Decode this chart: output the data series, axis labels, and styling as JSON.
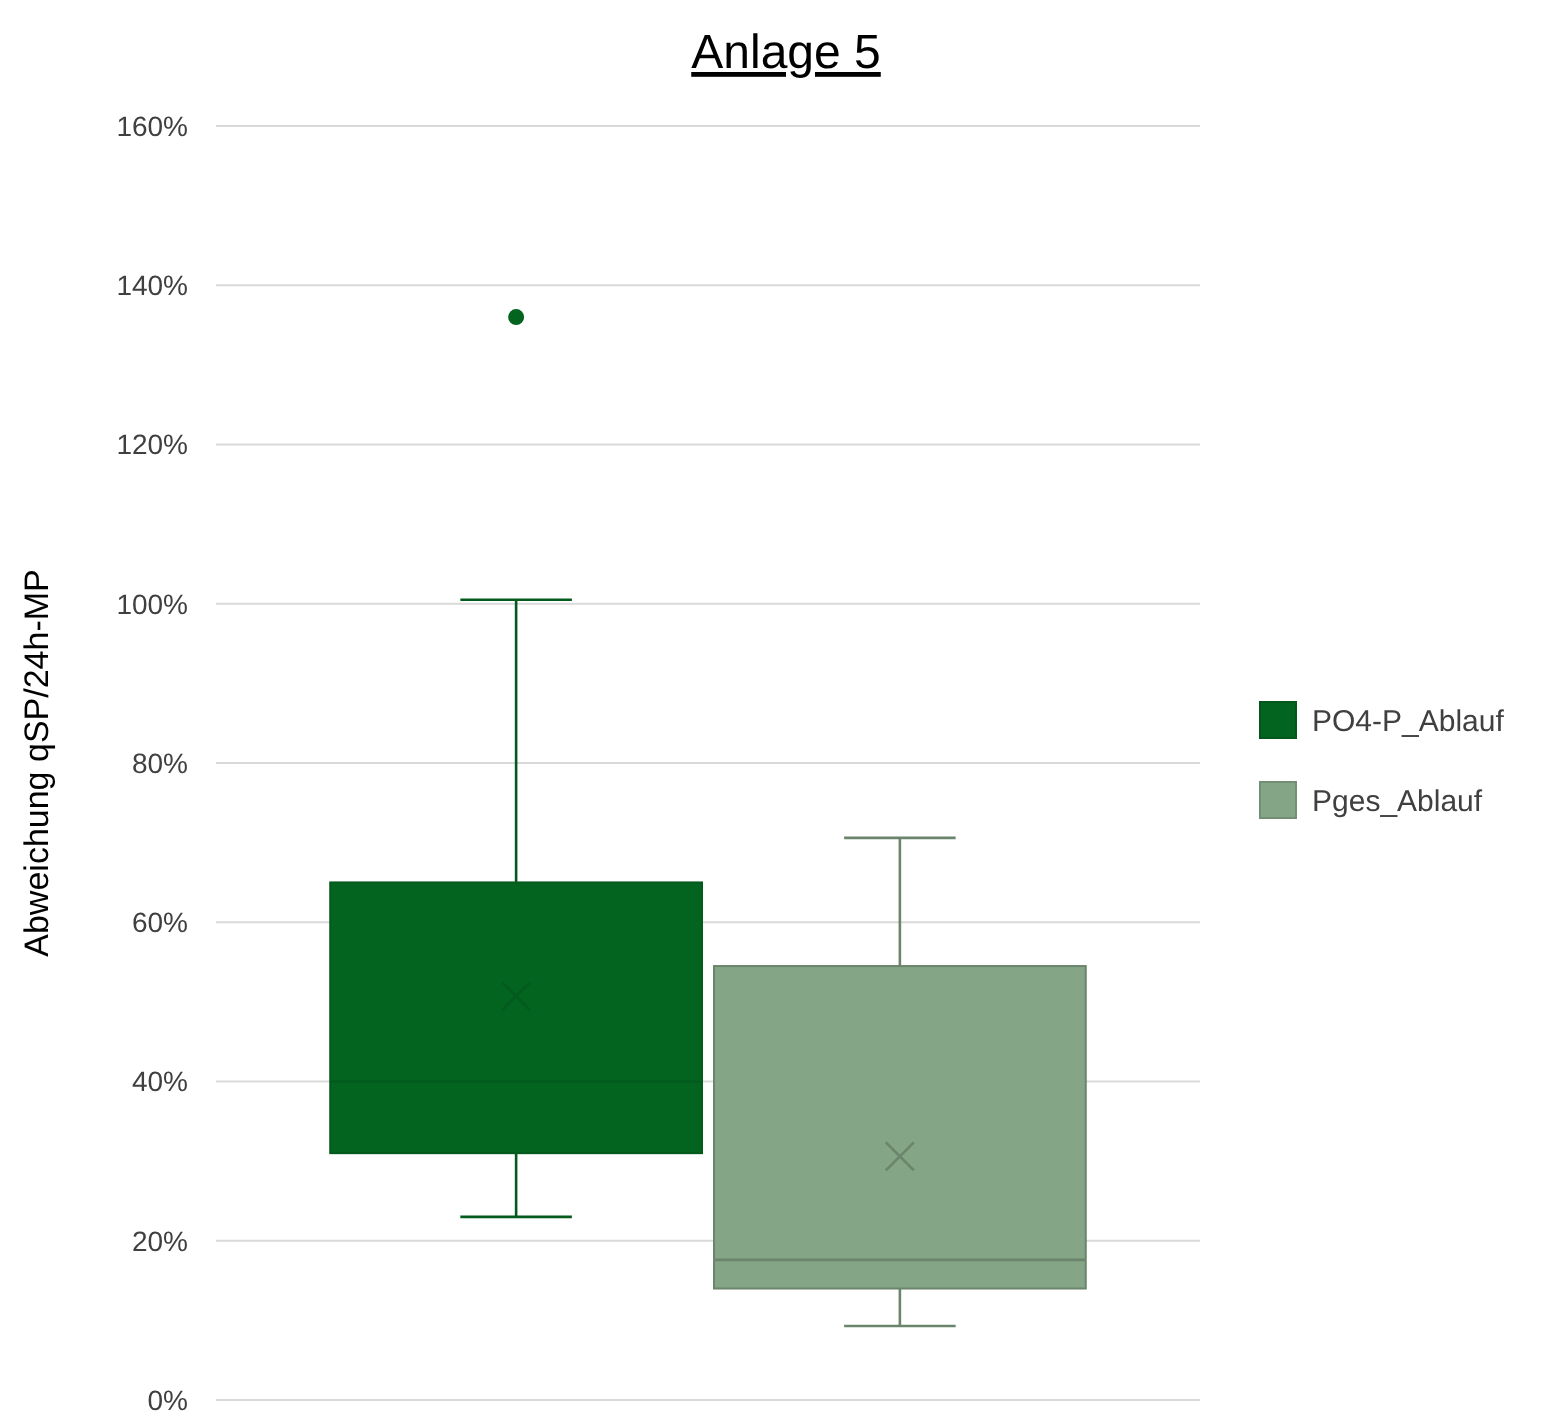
{
  "chart_data": {
    "type": "box",
    "title": "Anlage 5",
    "ylabel": "Abweichung qSP/24h-MP",
    "categories": [
      null
    ],
    "series": [
      {
        "name": "PO4-P_Ablauf",
        "color": "#036420",
        "boxes": [
          {
            "low": 23,
            "q1": 31,
            "median": 40,
            "q3": 65,
            "high": 100.5,
            "mean": 50.7,
            "outliers": [
              136
            ]
          }
        ]
      },
      {
        "name": "Pges_Ablauf",
        "color": "#84a586",
        "boxes": [
          {
            "low": 9.3,
            "q1": 14,
            "median": 17.6,
            "q3": 54.5,
            "high": 70.6,
            "mean": 30.6
          }
        ]
      }
    ],
    "ylim": [
      0,
      160
    ],
    "yticks": [
      {
        "value": 0,
        "label": "0%"
      },
      {
        "value": 20,
        "label": "20%"
      },
      {
        "value": 40,
        "label": "40%"
      },
      {
        "value": 60,
        "label": "60%"
      },
      {
        "value": 80,
        "label": "80%"
      },
      {
        "value": 100,
        "label": "100%"
      },
      {
        "value": 120,
        "label": "120%"
      },
      {
        "value": 140,
        "label": "140%"
      },
      {
        "value": 160,
        "label": "160%"
      }
    ],
    "grid": "y",
    "legend": "right"
  }
}
